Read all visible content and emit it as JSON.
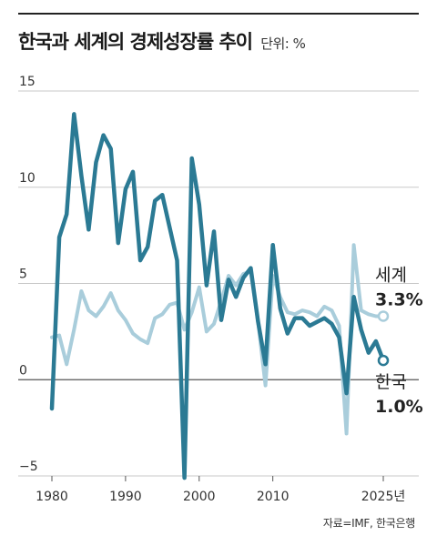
{
  "title": "한국과 세계의 경제성장률 추이",
  "unit_label": "단위: %",
  "source": "자료=IMF, 한국은행",
  "chart_data": {
    "type": "line",
    "ylim": [
      -5,
      15
    ],
    "yticks": [
      15,
      10,
      5,
      0,
      -5
    ],
    "ytick_labels": [
      "15",
      "10",
      "5",
      "0",
      "−5"
    ],
    "xlim": [
      1980,
      2025
    ],
    "xticks": [
      1980,
      1990,
      2000,
      2010,
      2025
    ],
    "xtick_labels": [
      "1980",
      "1990",
      "2000",
      "2010",
      "2025년"
    ],
    "grid": true,
    "series": [
      {
        "name": "세계",
        "color": "#a9cddb",
        "end_label": "세계",
        "end_value_label": "3.3%",
        "x": [
          1980,
          1981,
          1982,
          1983,
          1984,
          1985,
          1986,
          1987,
          1988,
          1989,
          1990,
          1991,
          1992,
          1993,
          1994,
          1995,
          1996,
          1997,
          1998,
          1999,
          2000,
          2001,
          2002,
          2003,
          2004,
          2005,
          2006,
          2007,
          2008,
          2009,
          2010,
          2011,
          2012,
          2013,
          2014,
          2015,
          2016,
          2017,
          2018,
          2019,
          2020,
          2021,
          2022,
          2023,
          2024,
          2025
        ],
        "y": [
          2.2,
          2.3,
          0.8,
          2.6,
          4.6,
          3.6,
          3.3,
          3.8,
          4.5,
          3.6,
          3.1,
          2.4,
          2.1,
          1.9,
          3.2,
          3.4,
          3.9,
          4.0,
          2.6,
          3.5,
          4.8,
          2.5,
          2.9,
          4.1,
          5.4,
          4.9,
          5.5,
          5.6,
          3.0,
          -0.3,
          5.4,
          4.3,
          3.5,
          3.4,
          3.6,
          3.5,
          3.3,
          3.8,
          3.6,
          2.8,
          -2.8,
          7.0,
          3.6,
          3.4,
          3.3,
          3.3
        ]
      },
      {
        "name": "한국",
        "color": "#2b7a94",
        "end_label": "한국",
        "end_value_label": "1.0%",
        "x": [
          1980,
          1981,
          1982,
          1983,
          1984,
          1985,
          1986,
          1987,
          1988,
          1989,
          1990,
          1991,
          1992,
          1993,
          1994,
          1995,
          1996,
          1997,
          1998,
          1999,
          2000,
          2001,
          2002,
          2003,
          2004,
          2005,
          2006,
          2007,
          2008,
          2009,
          2010,
          2011,
          2012,
          2013,
          2014,
          2015,
          2016,
          2017,
          2018,
          2019,
          2020,
          2021,
          2022,
          2023,
          2024,
          2025
        ],
        "y": [
          -1.5,
          7.4,
          8.6,
          13.8,
          10.6,
          7.8,
          11.3,
          12.7,
          12.0,
          7.1,
          9.9,
          10.8,
          6.2,
          6.9,
          9.3,
          9.6,
          7.9,
          6.2,
          -5.1,
          11.5,
          9.1,
          4.9,
          7.7,
          3.1,
          5.2,
          4.3,
          5.3,
          5.8,
          3.0,
          0.8,
          7.0,
          3.7,
          2.4,
          3.2,
          3.2,
          2.8,
          3.0,
          3.2,
          2.9,
          2.2,
          -0.7,
          4.3,
          2.6,
          1.4,
          2.0,
          1.0
        ]
      }
    ]
  }
}
